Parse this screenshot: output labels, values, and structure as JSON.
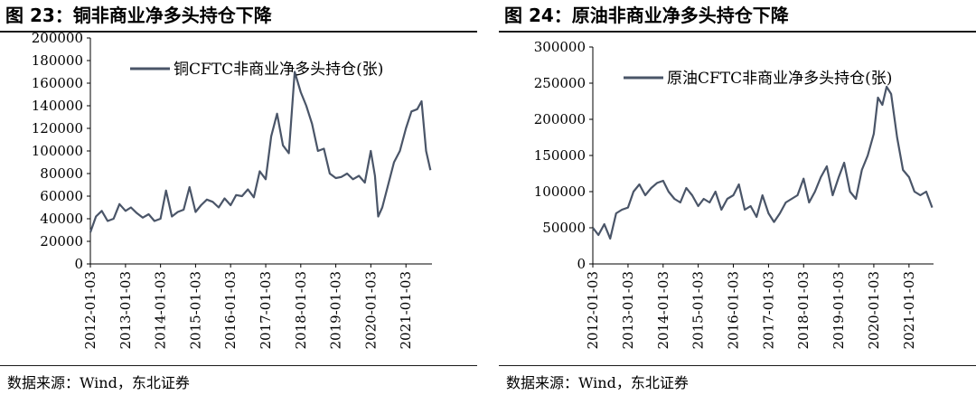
{
  "footer_source": "数据来源：Wind，东北证券",
  "chart_data": [
    {
      "type": "line",
      "figure_title": "图  23：铜非商业净多头持仓下降",
      "legend": "铜CFTC非商业净多头持仓(张)",
      "legend_position": "top",
      "color": "#4a5568",
      "grid": false,
      "ylim": [
        0,
        200000
      ],
      "yticks": [
        "0",
        "20000",
        "40000",
        "60000",
        "80000",
        "100000",
        "120000",
        "140000",
        "160000",
        "180000",
        "200000"
      ],
      "xticks": [
        "2012-01-03",
        "2013-01-03",
        "2014-01-03",
        "2015-01-03",
        "2016-01-03",
        "2017-01-03",
        "2018-01-03",
        "2019-01-03",
        "2020-01-03",
        "2021-01-03"
      ],
      "xlim": [
        "2012-01-03",
        "2021-10-01"
      ],
      "series": [
        {
          "x": [
            "2012-01-03",
            "2012-03-01",
            "2012-05-01",
            "2012-07-01",
            "2012-09-01",
            "2012-11-01",
            "2013-01-03",
            "2013-03-01",
            "2013-05-01",
            "2013-07-01",
            "2013-09-01",
            "2013-11-01",
            "2014-01-03",
            "2014-03-01",
            "2014-05-01",
            "2014-07-01",
            "2014-09-01",
            "2014-11-01",
            "2015-01-03",
            "2015-03-01",
            "2015-05-01",
            "2015-07-01",
            "2015-09-01",
            "2015-11-01",
            "2016-01-03",
            "2016-03-01",
            "2016-05-01",
            "2016-07-01",
            "2016-09-01",
            "2016-11-01",
            "2017-01-03",
            "2017-03-01",
            "2017-05-01",
            "2017-07-01",
            "2017-09-01",
            "2017-11-01",
            "2018-01-03",
            "2018-03-01",
            "2018-05-01",
            "2018-07-01",
            "2018-09-01",
            "2018-11-01",
            "2019-01-03",
            "2019-03-01",
            "2019-05-01",
            "2019-07-01",
            "2019-09-01",
            "2019-11-01",
            "2020-01-03",
            "2020-02-15",
            "2020-03-20",
            "2020-05-01",
            "2020-07-01",
            "2020-09-01",
            "2020-11-01",
            "2021-01-03",
            "2021-03-01",
            "2021-05-01",
            "2021-06-15",
            "2021-08-01",
            "2021-09-15"
          ],
          "values": [
            28000,
            42000,
            47000,
            38000,
            40000,
            53000,
            47000,
            50000,
            45000,
            41000,
            44000,
            38000,
            40000,
            65000,
            42000,
            46000,
            48000,
            68000,
            46000,
            52000,
            57000,
            55000,
            50000,
            58000,
            52000,
            61000,
            60000,
            66000,
            59000,
            82000,
            75000,
            113000,
            133000,
            105000,
            98000,
            170000,
            152000,
            140000,
            124000,
            100000,
            102000,
            80000,
            76000,
            77000,
            80000,
            75000,
            78000,
            72000,
            100000,
            78000,
            42000,
            50000,
            70000,
            90000,
            100000,
            120000,
            135000,
            137000,
            144000,
            100000,
            83000
          ]
        }
      ]
    },
    {
      "type": "line",
      "figure_title": "图  24：原油非商业净多头持仓下降",
      "legend": "原油CFTC非商业净多头持仓(张)",
      "legend_position": "top",
      "color": "#4a5568",
      "grid": false,
      "ylim": [
        0,
        300000
      ],
      "yticks": [
        "0",
        "50000",
        "100000",
        "150000",
        "200000",
        "250000",
        "300000"
      ],
      "xticks": [
        "2012-01-03",
        "2013-01-03",
        "2014-01-03",
        "2015-01-03",
        "2016-01-03",
        "2017-01-03",
        "2018-01-03",
        "2019-01-03",
        "2020-01-03",
        "2021-01-03"
      ],
      "xlim": [
        "2012-01-03",
        "2021-09-15"
      ],
      "series": [
        {
          "x": [
            "2012-01-03",
            "2012-03-01",
            "2012-05-01",
            "2012-07-01",
            "2012-09-01",
            "2012-11-01",
            "2013-01-03",
            "2013-03-01",
            "2013-05-01",
            "2013-07-01",
            "2013-09-01",
            "2013-11-01",
            "2014-01-03",
            "2014-03-01",
            "2014-05-01",
            "2014-07-01",
            "2014-09-01",
            "2014-11-01",
            "2015-01-03",
            "2015-03-01",
            "2015-05-01",
            "2015-07-01",
            "2015-09-01",
            "2015-11-01",
            "2016-01-03",
            "2016-03-01",
            "2016-05-01",
            "2016-07-01",
            "2016-09-01",
            "2016-11-01",
            "2017-01-03",
            "2017-03-01",
            "2017-05-01",
            "2017-07-01",
            "2017-09-01",
            "2017-11-01",
            "2018-01-03",
            "2018-03-01",
            "2018-05-01",
            "2018-07-01",
            "2018-09-01",
            "2018-11-01",
            "2019-01-03",
            "2019-03-01",
            "2019-05-01",
            "2019-07-01",
            "2019-09-01",
            "2019-11-01",
            "2020-01-03",
            "2020-02-15",
            "2020-04-01",
            "2020-05-15",
            "2020-07-01",
            "2020-09-01",
            "2020-11-01",
            "2021-01-03",
            "2021-03-01",
            "2021-05-01",
            "2021-07-01",
            "2021-09-01"
          ],
          "values": [
            50000,
            40000,
            55000,
            35000,
            70000,
            75000,
            78000,
            100000,
            110000,
            95000,
            105000,
            112000,
            115000,
            100000,
            90000,
            85000,
            105000,
            95000,
            80000,
            90000,
            85000,
            100000,
            75000,
            90000,
            95000,
            110000,
            75000,
            80000,
            65000,
            95000,
            70000,
            58000,
            70000,
            85000,
            90000,
            95000,
            118000,
            85000,
            100000,
            120000,
            135000,
            95000,
            120000,
            140000,
            100000,
            90000,
            130000,
            150000,
            180000,
            230000,
            220000,
            245000,
            235000,
            175000,
            130000,
            120000,
            100000,
            95000,
            100000,
            78000
          ]
        }
      ]
    }
  ]
}
